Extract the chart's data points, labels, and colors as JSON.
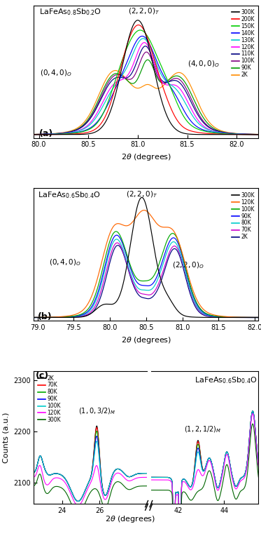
{
  "legend_a": {
    "entries": [
      "300K",
      "200K",
      "150K",
      "140K",
      "130K",
      "120K",
      "110K",
      "100K",
      "90K",
      "2K"
    ],
    "colors": [
      "#000000",
      "#ff0000",
      "#00cc00",
      "#0000ff",
      "#00cccc",
      "#ff00ff",
      "#000080",
      "#800080",
      "#009900",
      "#ff8c00"
    ]
  },
  "legend_b": {
    "entries": [
      "300K",
      "120K",
      "100K",
      "90K",
      "80K",
      "70K",
      "2K"
    ],
    "colors": [
      "#000000",
      "#ff6600",
      "#00aa00",
      "#0000ff",
      "#00cccc",
      "#cc00cc",
      "#000080"
    ]
  },
  "legend_c": {
    "entries": [
      "2K",
      "70K",
      "80K",
      "90K",
      "100K",
      "120K",
      "300K"
    ],
    "colors": [
      "#000000",
      "#ff0000",
      "#00aa00",
      "#0000ff",
      "#00cccc",
      "#ff00ff",
      "#006600"
    ]
  }
}
